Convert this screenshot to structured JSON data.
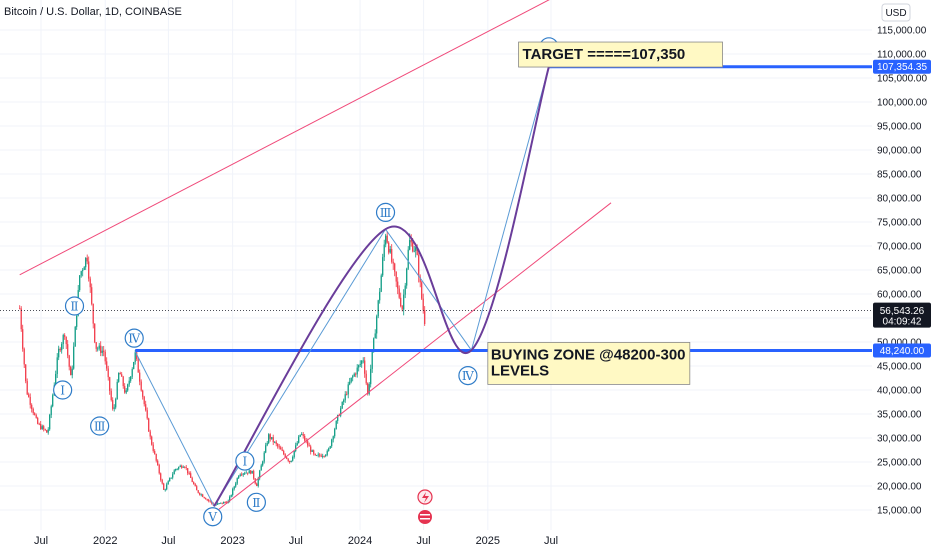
{
  "chart_data": {
    "type": "candlestick",
    "title": "Bitcoin / U.S. Dollar, 1D, COINBASE",
    "currency": "USD",
    "y_ticks": [
      "15,000.00",
      "20,000.00",
      "25,000.00",
      "30,000.00",
      "35,000.00",
      "40,000.00",
      "45,000.00",
      "50,000.00",
      "55,000.00",
      "60,000.00",
      "65,000.00",
      "70,000.00",
      "75,000.00",
      "80,000.00",
      "85,000.00",
      "90,000.00",
      "95,000.00",
      "100,000.00",
      "105,000.00",
      "110,000.00",
      "115,000.00"
    ],
    "x_ticks": [
      {
        "label": "Jul",
        "date": "2021-07"
      },
      {
        "label": "2022",
        "date": "2022-01"
      },
      {
        "label": "Jul",
        "date": "2022-07"
      },
      {
        "label": "2023",
        "date": "2023-01"
      },
      {
        "label": "Jul",
        "date": "2023-07"
      },
      {
        "label": "2024",
        "date": "2024-01"
      },
      {
        "label": "Jul",
        "date": "2024-07"
      },
      {
        "label": "2025",
        "date": "2025-01"
      },
      {
        "label": "Jul",
        "date": "2025-07"
      }
    ],
    "ylim": [
      12500,
      118500
    ],
    "price_path": [
      [
        "2021-05-01",
        57000
      ],
      [
        "2021-05-20",
        40000
      ],
      [
        "2021-06-20",
        33000
      ],
      [
        "2021-07-20",
        31000
      ],
      [
        "2021-08-20",
        48000
      ],
      [
        "2021-09-07",
        52000
      ],
      [
        "2021-09-25",
        42000
      ],
      [
        "2021-10-20",
        64000
      ],
      [
        "2021-11-10",
        68000
      ],
      [
        "2021-12-04",
        49000
      ],
      [
        "2021-12-28",
        48000
      ],
      [
        "2022-01-24",
        35000
      ],
      [
        "2022-02-10",
        44000
      ],
      [
        "2022-03-01",
        39000
      ],
      [
        "2022-03-28",
        47500
      ],
      [
        "2022-05-10",
        30000
      ],
      [
        "2022-06-18",
        19000
      ],
      [
        "2022-07-20",
        23500
      ],
      [
        "2022-08-15",
        24500
      ],
      [
        "2022-09-20",
        19000
      ],
      [
        "2022-11-09",
        16000
      ],
      [
        "2022-12-20",
        16800
      ],
      [
        "2023-01-20",
        22700
      ],
      [
        "2023-02-25",
        23000
      ],
      [
        "2023-03-10",
        20000
      ],
      [
        "2023-04-14",
        30500
      ],
      [
        "2023-06-15",
        25000
      ],
      [
        "2023-07-15",
        31000
      ],
      [
        "2023-08-25",
        26000
      ],
      [
        "2023-10-01",
        27000
      ],
      [
        "2023-10-30",
        34500
      ],
      [
        "2023-12-05",
        42000
      ],
      [
        "2024-01-10",
        46500
      ],
      [
        "2024-01-23",
        39000
      ],
      [
        "2024-02-28",
        62000
      ],
      [
        "2024-03-14",
        73000
      ],
      [
        "2024-04-17",
        61000
      ],
      [
        "2024-05-01",
        57000
      ],
      [
        "2024-05-21",
        71000
      ],
      [
        "2024-06-10",
        69000
      ],
      [
        "2024-06-24",
        60000
      ],
      [
        "2024-07-05",
        54000
      ]
    ],
    "current_price": {
      "label": "56,543.26",
      "value": 56543.26,
      "countdown": "04:09:42"
    },
    "horizontal_levels": [
      {
        "value": 48240,
        "label": "48,240.00",
        "start": "2022-03-28"
      },
      {
        "value": 107354.35,
        "label": "107,354.35",
        "start": "2025-06-25"
      }
    ],
    "channel_lines": [
      {
        "from": [
          "2021-05-01",
          64000
        ],
        "to": [
          "2025-12-20",
          128000
        ]
      },
      {
        "from": [
          "2022-11-20",
          15000
        ],
        "to": [
          "2025-12-20",
          79000
        ]
      }
    ],
    "wave_path": [
      [
        "2022-03-28",
        48000
      ],
      [
        "2022-11-09",
        15800
      ],
      [
        "2024-03-14",
        73500
      ],
      [
        "2024-11-15",
        48300
      ],
      [
        "2025-06-25",
        107350
      ]
    ],
    "curve_path": [
      [
        "2022-11-09",
        15800
      ],
      [
        "2024-03-14",
        73500
      ],
      [
        "2024-11-15",
        48300
      ],
      [
        "2025-06-25",
        107350
      ]
    ],
    "wave_labels": [
      {
        "text": "Ⅱ",
        "date": "2021-10-05",
        "value": 57500
      },
      {
        "text": "Ⅰ",
        "date": "2021-09-01",
        "value": 40000
      },
      {
        "text": "Ⅳ",
        "date": "2022-03-25",
        "value": 50800
      },
      {
        "text": "Ⅲ",
        "date": "2021-12-16",
        "value": 32500
      },
      {
        "text": "Ⅴ",
        "date": "2022-11-05",
        "value": 13600
      },
      {
        "text": "Ⅰ",
        "date": "2023-02-05",
        "value": 25200
      },
      {
        "text": "Ⅱ",
        "date": "2023-03-10",
        "value": 16600
      },
      {
        "text": "Ⅲ",
        "date": "2024-03-14",
        "value": 77000
      },
      {
        "text": "Ⅳ",
        "date": "2024-11-05",
        "value": 43000
      },
      {
        "text": "Ⅴ",
        "date": "2025-06-25",
        "value": 111500
      }
    ],
    "annotations": [
      {
        "text": "TARGET =====107,350",
        "date": "2025-03-30",
        "value": 110200
      },
      {
        "lines": [
          "BUYING ZONE @48200-300",
          "LEVELS"
        ],
        "date": "2025-01-01",
        "value": 47000
      }
    ]
  }
}
